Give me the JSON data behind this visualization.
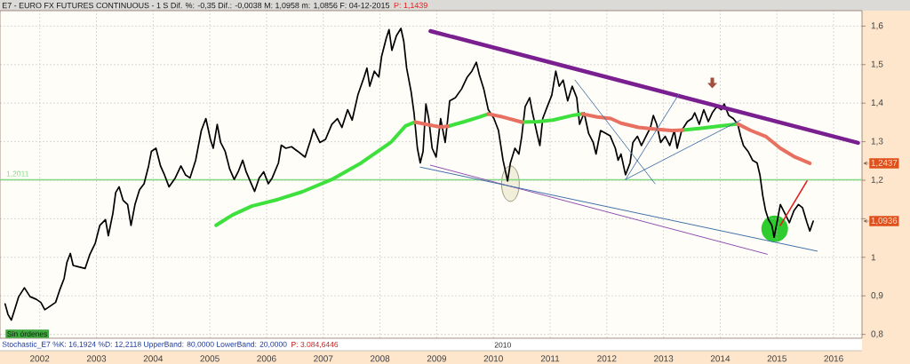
{
  "chart_data": {
    "type": "line",
    "title": "E7 - EURO FX FUTURES CONTINUOUS - 1 S Dif. %: -0,35 Dif.: -0,0038 M: 1,0958 m: 1,0856 F: 04-12-2015",
    "subtitle": "P: 1,1439",
    "xlim": [
      2001.3,
      2016.5
    ],
    "xticks": [
      2002,
      2003,
      2004,
      2005,
      2006,
      2007,
      2008,
      2009,
      2010,
      2011,
      2012,
      2013,
      2014,
      2015,
      2016
    ],
    "ylim": [
      0.79,
      1.64
    ],
    "yticks": [
      {
        "value": 0.8,
        "label": "0,8"
      },
      {
        "value": 0.9,
        "label": "0,9"
      },
      1,
      {
        "value": 1.1,
        "label": null
      },
      {
        "value": 1.2,
        "label": "1,2"
      },
      {
        "value": 1.3,
        "label": "1,3"
      },
      {
        "value": 1.4,
        "label": "1,4"
      },
      {
        "value": 1.5,
        "label": "1,5"
      },
      {
        "value": 1.6,
        "label": "1,6"
      }
    ],
    "grid": true,
    "series": [
      {
        "color": "#000000",
        "x": [
          2001.39,
          2001.44,
          2001.5,
          2001.55,
          2001.63,
          2001.73,
          2001.83,
          2001.94,
          2002.02,
          2002.09,
          2002.2,
          2002.28,
          2002.35,
          2002.43,
          2002.48,
          2002.54,
          2002.59,
          2002.69,
          2002.8,
          2002.88,
          2002.98,
          2003.06,
          2003.16,
          2003.21,
          2003.29,
          2003.34,
          2003.4,
          2003.47,
          2003.55,
          2003.61,
          2003.68,
          2003.76,
          2003.84,
          2003.92,
          2003.97,
          2004.05,
          2004.13,
          2004.2,
          2004.28,
          2004.39,
          2004.49,
          2004.57,
          2004.65,
          2004.75,
          2004.85,
          2004.93,
          2005.01,
          2005.06,
          2005.13,
          2005.19,
          2005.27,
          2005.35,
          2005.43,
          2005.5,
          2005.58,
          2005.64,
          2005.71,
          2005.79,
          2005.87,
          2005.95,
          2006.03,
          2006.1,
          2006.21,
          2006.26,
          2006.34,
          2006.44,
          2006.55,
          2006.68,
          2006.78,
          2006.83,
          2006.94,
          2007.04,
          2007.15,
          2007.25,
          2007.33,
          2007.43,
          2007.51,
          2007.61,
          2007.72,
          2007.77,
          2007.82,
          2007.9,
          2007.98,
          2008.03,
          2008.11,
          2008.16,
          2008.21,
          2008.29,
          2008.37,
          2008.42,
          2008.47,
          2008.55,
          2008.6,
          2008.66,
          2008.71,
          2008.76,
          2008.81,
          2008.86,
          2008.92,
          2008.99,
          2009.07,
          2009.15,
          2009.23,
          2009.33,
          2009.44,
          2009.54,
          2009.62,
          2009.7,
          2009.75,
          2009.83,
          2009.91,
          2010.01,
          2010.09,
          2010.17,
          2010.25,
          2010.3,
          2010.38,
          2010.45,
          2010.5,
          2010.56,
          2010.64,
          2010.69,
          2010.77,
          2010.82,
          2010.87,
          2010.95,
          2011.03,
          2011.1,
          2011.16,
          2011.23,
          2011.31,
          2011.39,
          2011.47,
          2011.52,
          2011.6,
          2011.68,
          2011.76,
          2011.81,
          2011.89,
          2011.99,
          2012.06,
          2012.15,
          2012.2,
          2012.25,
          2012.33,
          2012.41,
          2012.46,
          2012.54,
          2012.61,
          2012.69,
          2012.77,
          2012.82,
          2012.88,
          2012.95,
          2013.03,
          2013.11,
          2013.19,
          2013.24,
          2013.32,
          2013.42,
          2013.5,
          2013.55,
          2013.63,
          2013.71,
          2013.79,
          2013.86,
          2013.94,
          2014.02,
          2014.07,
          2014.15,
          2014.23,
          2014.31,
          2014.36,
          2014.41,
          2014.49,
          2014.57,
          2014.65,
          2014.7,
          2014.75,
          2014.8,
          2014.85,
          2014.91,
          2014.95,
          2015.01,
          2015.06,
          2015.14,
          2015.22,
          2015.3,
          2015.38,
          2015.45,
          2015.53,
          2015.58,
          2015.64
        ],
        "values": [
          0.879,
          0.852,
          0.837,
          0.86,
          0.898,
          0.921,
          0.898,
          0.891,
          0.883,
          0.864,
          0.875,
          0.883,
          0.914,
          0.945,
          0.987,
          1.01,
          0.979,
          0.975,
          0.971,
          1.006,
          1.037,
          1.083,
          1.098,
          1.056,
          1.114,
          1.168,
          1.183,
          1.148,
          1.137,
          1.083,
          1.137,
          1.175,
          1.191,
          1.237,
          1.275,
          1.283,
          1.237,
          1.214,
          1.183,
          1.206,
          1.237,
          1.214,
          1.206,
          1.252,
          1.329,
          1.36,
          1.306,
          1.283,
          1.345,
          1.298,
          1.275,
          1.229,
          1.202,
          1.222,
          1.252,
          1.222,
          1.198,
          1.171,
          1.206,
          1.222,
          1.191,
          1.206,
          1.245,
          1.291,
          1.283,
          1.287,
          1.275,
          1.26,
          1.306,
          1.333,
          1.298,
          1.306,
          1.345,
          1.36,
          1.337,
          1.383,
          1.356,
          1.421,
          1.468,
          1.491,
          1.444,
          1.483,
          1.468,
          1.522,
          1.568,
          1.591,
          1.537,
          1.575,
          1.594,
          1.56,
          1.491,
          1.429,
          1.375,
          1.283,
          1.245,
          1.275,
          1.398,
          1.36,
          1.283,
          1.26,
          1.36,
          1.298,
          1.406,
          1.414,
          1.437,
          1.468,
          1.483,
          1.506,
          1.475,
          1.437,
          1.383,
          1.36,
          1.329,
          1.252,
          1.198,
          1.245,
          1.283,
          1.268,
          1.314,
          1.391,
          1.414,
          1.375,
          1.321,
          1.29,
          1.36,
          1.391,
          1.421,
          1.483,
          1.444,
          1.46,
          1.406,
          1.444,
          1.414,
          1.345,
          1.375,
          1.321,
          1.298,
          1.268,
          1.329,
          1.321,
          1.315,
          1.283,
          1.252,
          1.268,
          1.214,
          1.245,
          1.298,
          1.314,
          1.29,
          1.314,
          1.337,
          1.368,
          1.345,
          1.298,
          1.314,
          1.29,
          1.329,
          1.283,
          1.329,
          1.352,
          1.36,
          1.375,
          1.345,
          1.383,
          1.352,
          1.375,
          1.391,
          1.383,
          1.398,
          1.368,
          1.36,
          1.345,
          1.314,
          1.29,
          1.275,
          1.252,
          1.245,
          1.214,
          1.16,
          1.121,
          1.098,
          1.083,
          1.052,
          1.098,
          1.137,
          1.114,
          1.09,
          1.121,
          1.137,
          1.129,
          1.09,
          1.068,
          1.094
        ]
      },
      {
        "color": "#3ee03e",
        "x": [
          2005.11,
          2005.4,
          2005.74,
          2006.2,
          2006.63,
          2007.15,
          2007.67,
          2008.19,
          2008.45,
          2008.62,
          2008.9,
          2009.2,
          2009.49,
          2009.75,
          2009.91,
          2010.2,
          2010.5,
          2010.79,
          2011.05,
          2011.42,
          2011.57,
          2012.5,
          2013.34,
          2013.66,
          2014.02,
          2014.31
        ],
        "values": [
          1.083,
          1.11,
          1.133,
          1.15,
          1.17,
          1.202,
          1.245,
          1.298,
          1.341,
          1.351,
          null,
          1.34,
          1.352,
          1.364,
          1.372,
          null,
          1.351,
          1.352,
          1.356,
          1.369,
          1.372,
          null,
          1.33,
          1.335,
          1.341,
          1.346
        ]
      },
      {
        "color": "#e87060",
        "x": [
          2008.62,
          2008.81,
          2009.07,
          2009.2,
          2009.5,
          2009.91,
          2010.17,
          2010.5,
          2011.0,
          2011.57,
          2011.83,
          2012.07,
          2012.25,
          2012.56,
          2012.82,
          2013.14,
          2013.34,
          2013.8,
          2014.31,
          2014.54,
          2014.8,
          2015.06,
          2015.32,
          2015.58
        ],
        "values": [
          1.351,
          1.345,
          1.338,
          1.34,
          null,
          1.372,
          1.364,
          1.351,
          null,
          1.372,
          1.364,
          1.36,
          1.348,
          1.337,
          1.333,
          1.329,
          1.33,
          null,
          1.346,
          1.329,
          1.314,
          1.283,
          1.26,
          1.244
        ]
      },
      {
        "color": "#7a1f8f",
        "x": [
          2008.89,
          2016.43
        ],
        "values": [
          1.587,
          1.297
        ]
      },
      {
        "color": "#9050b0",
        "x": [
          2008.89,
          2014.83
        ],
        "values": [
          1.239,
          1.008
        ]
      },
      {
        "color": "#4070a8",
        "x": [
          2008.71,
          2015.71
        ],
        "values": [
          1.234,
          1.016
        ]
      },
      {
        "color": "#4070a8",
        "x": [
          2011.44,
          2012.85
        ],
        "values": [
          1.46,
          1.191
        ]
      },
      {
        "color": "#4070a8",
        "x": [
          2012.33,
          2013.27
        ],
        "values": [
          1.202,
          1.423
        ]
      },
      {
        "color": "#4070a8",
        "x": [
          2012.33,
          2014.36
        ],
        "values": [
          1.202,
          1.356
        ]
      },
      {
        "color": "#e02020",
        "x": [
          2015.06,
          2015.53
        ],
        "values": [
          1.083,
          1.198
        ]
      }
    ],
    "ref_lines": [
      {
        "axis": "y",
        "value": 1.2011,
        "label": "1,2011",
        "color": "#80d880"
      }
    ],
    "annotations": [
      "Stochastic_E7 %K: 16,1924 %D: 12,2118 UpperBand: 80,0000 LowerBand: 20,0000",
      "P: 3.084,6446",
      "2010",
      "Sin órdenes",
      "1,2437",
      "1,0936"
    ]
  }
}
